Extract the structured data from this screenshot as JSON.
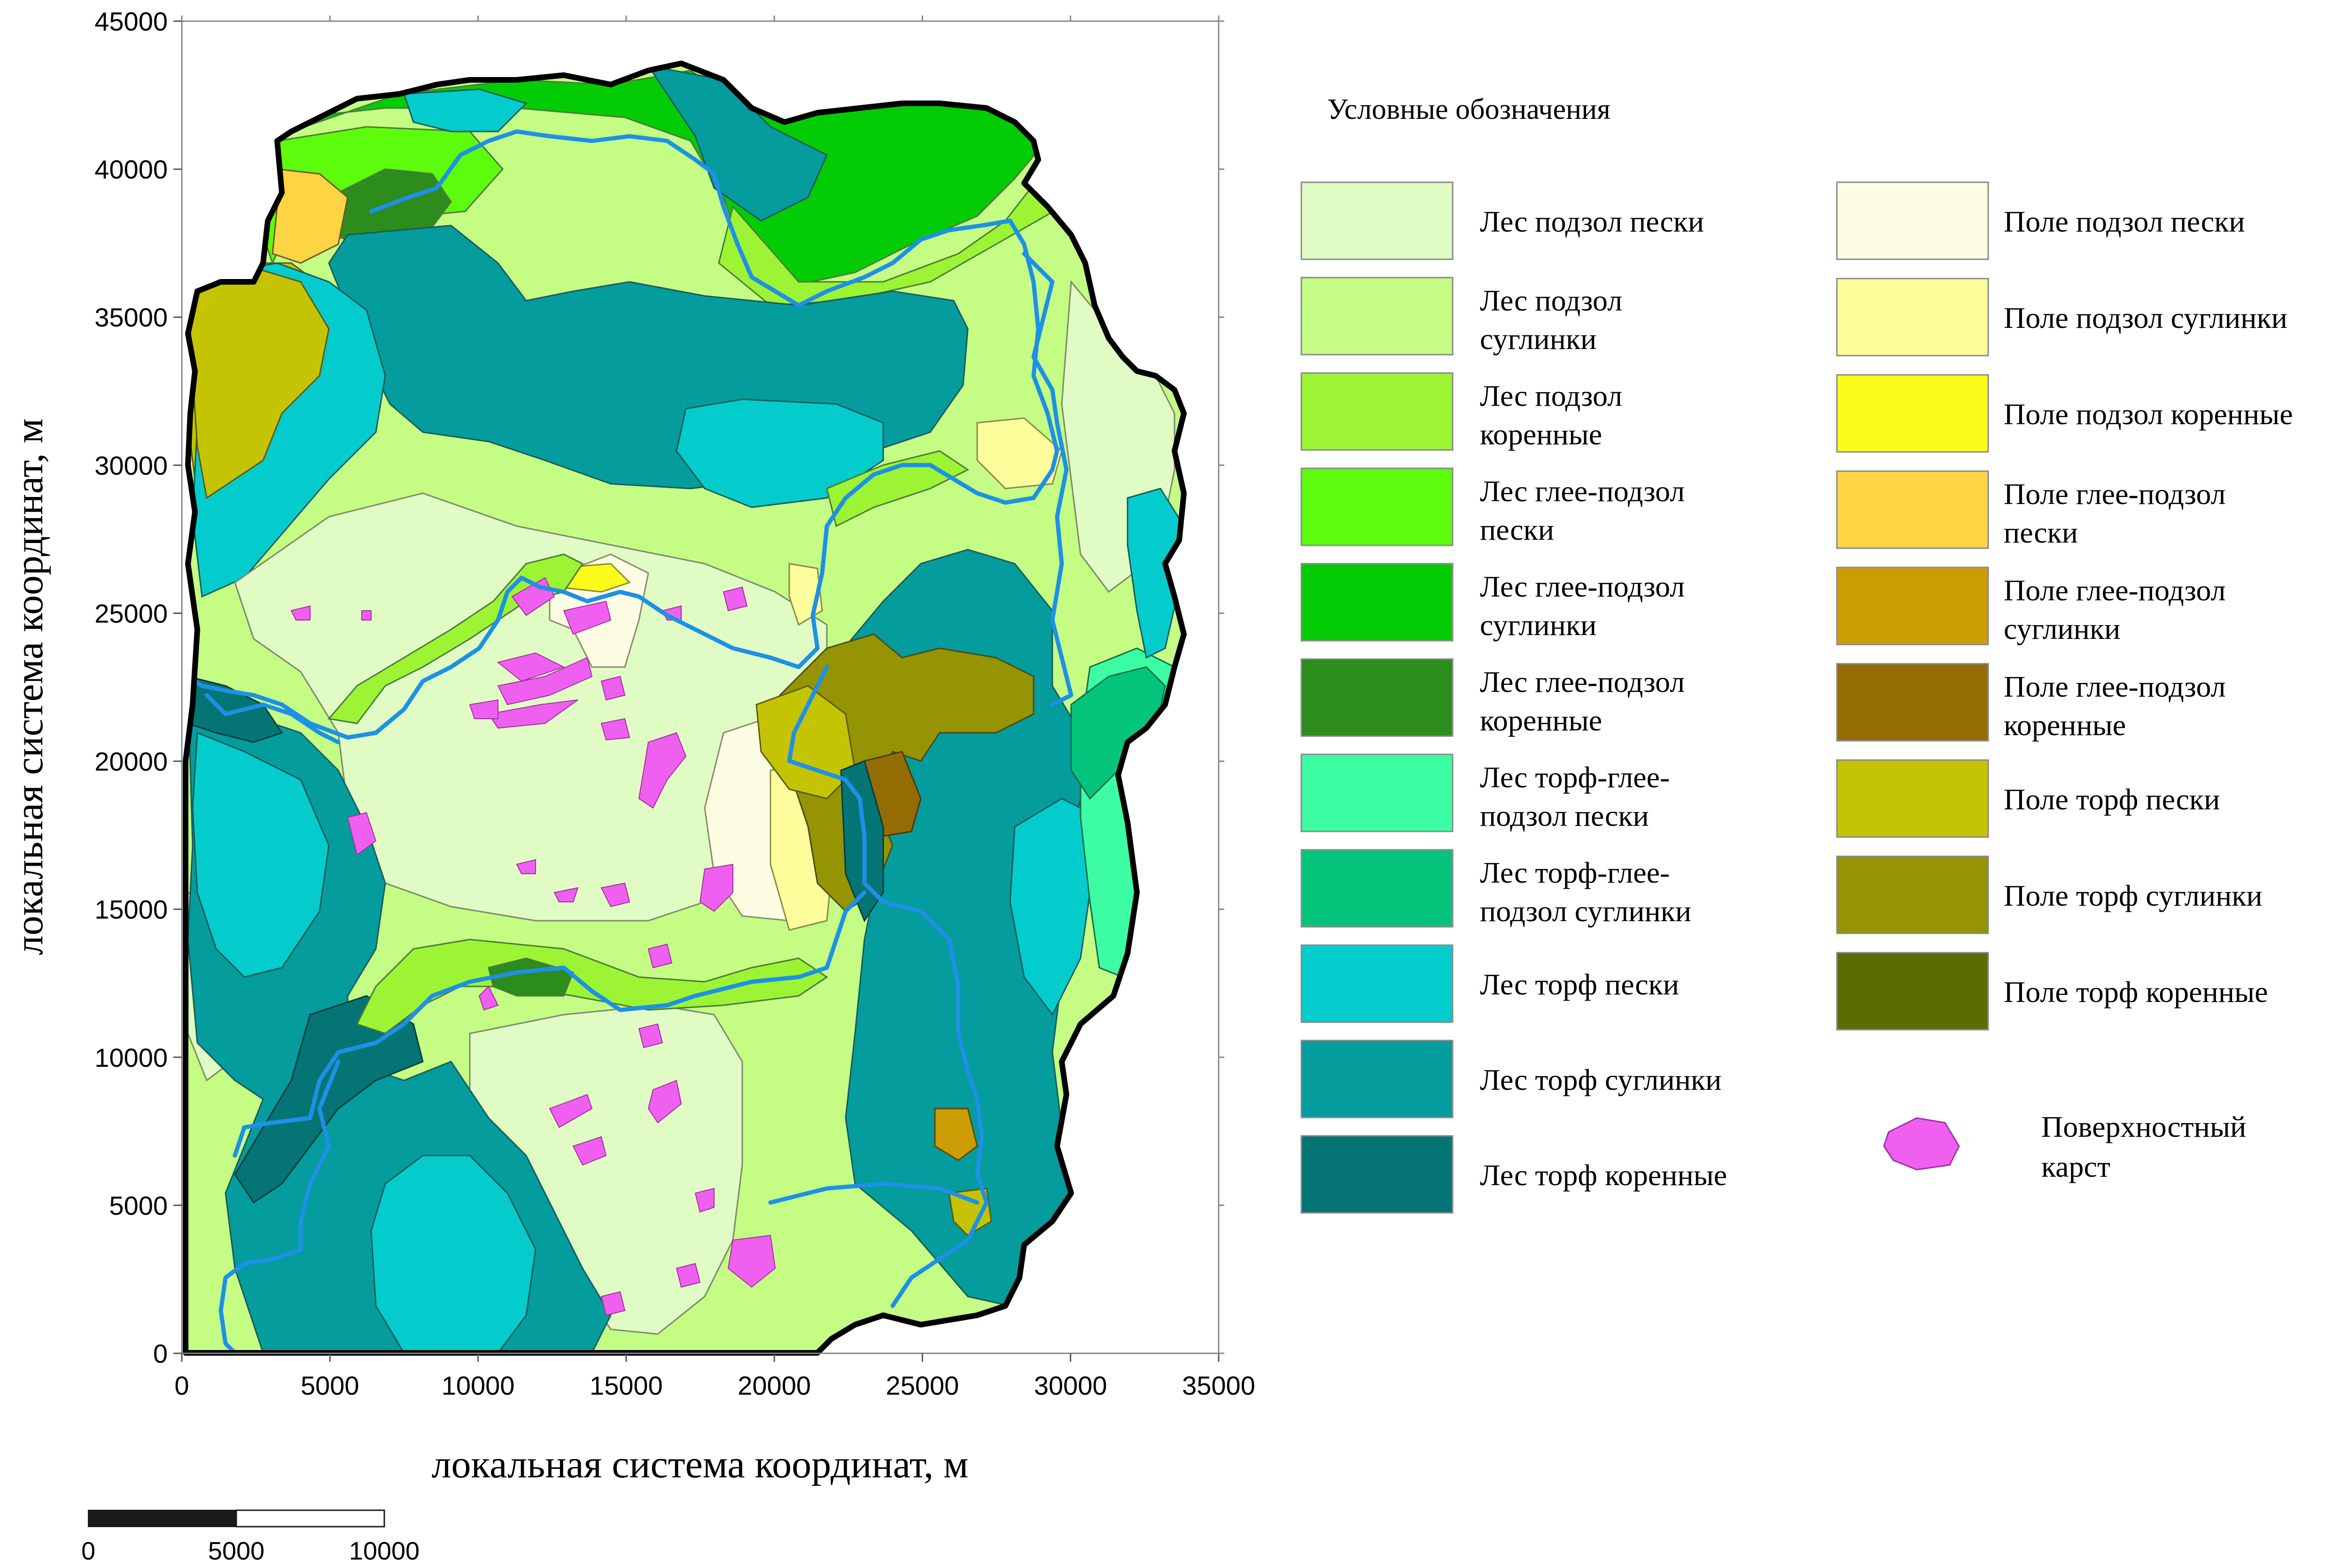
{
  "map": {
    "x_axis_title": "локальная система координат, м",
    "y_axis_title": "локальная система координат, м",
    "x_ticks": [
      "0",
      "5000",
      "10000",
      "15000",
      "20000",
      "25000",
      "30000",
      "35000"
    ],
    "y_ticks": [
      "0",
      "5000",
      "10000",
      "15000",
      "20000",
      "25000",
      "30000",
      "35000",
      "40000",
      "45000"
    ],
    "x_range": [
      0,
      35000
    ],
    "y_range": [
      0,
      45000
    ],
    "river_color": "#1e90e6",
    "karst_color": "#f060f0",
    "boundary_color": "#000000"
  },
  "legend": {
    "title": "Условные обозначения",
    "left_items": [
      {
        "lines": [
          "Лес подзол пески"
        ],
        "color": "#e0fcc4"
      },
      {
        "lines": [
          "Лес подзол",
          "суглинки"
        ],
        "color": "#c4fc84"
      },
      {
        "lines": [
          "Лес подзол",
          "коренные"
        ],
        "color": "#9cf434"
      },
      {
        "lines": [
          "Лес глее-подзол",
          "пески"
        ],
        "color": "#5cfc0c"
      },
      {
        "lines": [
          "Лес глее-подзол",
          "суглинки"
        ],
        "color": "#04cc04"
      },
      {
        "lines": [
          "Лес глее-подзол",
          "коренные"
        ],
        "color": "#2c8c1c"
      },
      {
        "lines": [
          "Лес торф-глее-",
          "подзол пески"
        ],
        "color": "#3cfca4"
      },
      {
        "lines": [
          "Лес торф-глее-",
          "подзол суглинки"
        ],
        "color": "#04c47c"
      },
      {
        "lines": [
          "Лес торф пески"
        ],
        "color": "#04cccc"
      },
      {
        "lines": [
          "Лес торф суглинки"
        ],
        "color": "#049c9c"
      },
      {
        "lines": [
          "Лес торф коренные"
        ],
        "color": "#047474"
      }
    ],
    "right_items": [
      {
        "lines": [
          "Поле подзол пески"
        ],
        "color": "#fdfde4"
      },
      {
        "lines": [
          "Поле подзол суглинки"
        ],
        "color": "#fdfd9c"
      },
      {
        "lines": [
          "Поле подзол коренные"
        ],
        "color": "#fcfc1c"
      },
      {
        "lines": [
          "Поле глее-подзол",
          "пески"
        ],
        "color": "#fcd444"
      },
      {
        "lines": [
          "Поле глее-подзол",
          "суглинки"
        ],
        "color": "#cc9c04"
      },
      {
        "lines": [
          "Поле глее-подзол",
          "коренные"
        ],
        "color": "#946c04"
      },
      {
        "lines": [
          "Поле торф пески"
        ],
        "color": "#c4c404"
      },
      {
        "lines": [
          "Поле торф суглинки"
        ],
        "color": "#949404"
      },
      {
        "lines": [
          "Поле торф коренные"
        ],
        "color": "#5c6c04"
      }
    ],
    "karst": {
      "lines": [
        "Поверхностный",
        "карст"
      ],
      "color": "#f060f0"
    }
  },
  "scale_bar": {
    "labels": [
      "0",
      "5000",
      "10000"
    ]
  }
}
